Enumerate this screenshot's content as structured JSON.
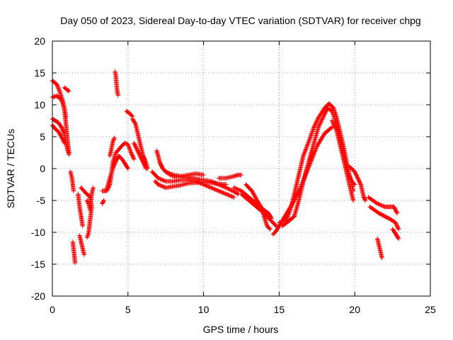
{
  "chart_data": {
    "type": "scatter",
    "title": "Day 050 of 2023, Sidereal Day-to-day VTEC variation (SDTVAR) for receiver chpg",
    "xlabel": "GPS time / hours",
    "ylabel": "SDTVAR / TECUs",
    "xlim": [
      0,
      25
    ],
    "ylim": [
      -20,
      20
    ],
    "xticks": [
      0,
      5,
      10,
      15,
      20,
      25
    ],
    "yticks": [
      -20,
      -15,
      -10,
      -5,
      0,
      5,
      10,
      15,
      20
    ],
    "grid": true,
    "marker": "+",
    "color": "#ff0000",
    "series": [
      {
        "name": "s1",
        "points": [
          [
            0.0,
            13.8
          ],
          [
            0.3,
            13.2
          ],
          [
            0.5,
            12.0
          ],
          [
            0.7,
            10.5
          ],
          [
            0.8,
            9.0
          ],
          [
            0.9,
            7.0
          ],
          [
            1.0,
            4.5
          ],
          [
            1.1,
            2.5
          ]
        ]
      },
      {
        "name": "s2",
        "points": [
          [
            0.0,
            11.2
          ],
          [
            0.3,
            11.4
          ],
          [
            0.6,
            10.8
          ],
          [
            0.8,
            9.5
          ],
          [
            0.9,
            8.0
          ]
        ]
      },
      {
        "name": "s3",
        "points": [
          [
            0.0,
            7.8
          ],
          [
            0.2,
            7.5
          ],
          [
            0.4,
            7.2
          ],
          [
            0.6,
            6.5
          ],
          [
            0.8,
            5.5
          ],
          [
            0.9,
            4.0
          ],
          [
            1.0,
            3.0
          ],
          [
            1.1,
            2.2
          ]
        ]
      },
      {
        "name": "s4",
        "points": [
          [
            0.0,
            6.8
          ],
          [
            0.2,
            6.2
          ],
          [
            0.4,
            5.8
          ],
          [
            0.6,
            5.0
          ],
          [
            0.8,
            4.0
          ]
        ]
      },
      {
        "name": "s5",
        "points": [
          [
            0.8,
            12.7
          ],
          [
            0.9,
            12.5
          ],
          [
            1.0,
            12.3
          ],
          [
            1.1,
            12.2
          ]
        ]
      },
      {
        "name": "s6",
        "points": [
          [
            1.2,
            -0.5
          ],
          [
            1.3,
            -1.5
          ],
          [
            1.35,
            -2.5
          ],
          [
            1.4,
            -3.5
          ]
        ]
      },
      {
        "name": "s7",
        "points": [
          [
            1.35,
            -11.5
          ],
          [
            1.4,
            -12.5
          ],
          [
            1.45,
            -13.5
          ],
          [
            1.5,
            -14.8
          ]
        ]
      },
      {
        "name": "s8",
        "points": [
          [
            1.7,
            -4.0
          ],
          [
            1.8,
            -6.0
          ],
          [
            1.9,
            -7.5
          ],
          [
            2.0,
            -9.0
          ]
        ]
      },
      {
        "name": "s9",
        "points": [
          [
            1.8,
            -10.5
          ],
          [
            1.9,
            -11.5
          ],
          [
            2.0,
            -12.5
          ],
          [
            2.1,
            -13.5
          ]
        ]
      },
      {
        "name": "s10",
        "points": [
          [
            1.9,
            -3.0
          ],
          [
            2.2,
            -3.8
          ],
          [
            2.5,
            -4.5
          ],
          [
            2.6,
            -6.0
          ],
          [
            2.5,
            -8.0
          ],
          [
            2.4,
            -10.0
          ],
          [
            2.3,
            -10.8
          ]
        ]
      },
      {
        "name": "s11",
        "points": [
          [
            2.3,
            -5.0
          ],
          [
            2.4,
            -5.5
          ],
          [
            2.5,
            -6.5
          ],
          [
            2.6,
            -4.0
          ],
          [
            2.7,
            -3.0
          ]
        ]
      },
      {
        "name": "s12",
        "points": [
          [
            3.3,
            -5.5
          ],
          [
            3.4,
            -5.0
          ]
        ]
      },
      {
        "name": "s13",
        "points": [
          [
            3.3,
            -3.5
          ],
          [
            3.6,
            -3.5
          ],
          [
            3.8,
            -2.5
          ],
          [
            3.9,
            -1.0
          ],
          [
            4.0,
            1.0
          ],
          [
            4.2,
            2.5
          ],
          [
            4.4,
            3.0
          ],
          [
            4.6,
            3.6
          ],
          [
            4.8,
            4.0
          ],
          [
            5.0,
            3.8
          ],
          [
            5.2,
            2.5
          ],
          [
            5.4,
            1.5
          ]
        ]
      },
      {
        "name": "s14",
        "points": [
          [
            3.6,
            -3.2
          ],
          [
            3.8,
            -1.5
          ],
          [
            4.0,
            0.0
          ],
          [
            4.2,
            1.2
          ],
          [
            4.4,
            2.0
          ],
          [
            4.6,
            1.5
          ],
          [
            4.8,
            0.8
          ],
          [
            5.0,
            0.0
          ]
        ]
      },
      {
        "name": "s15",
        "points": [
          [
            3.8,
            2.0
          ],
          [
            3.9,
            3.0
          ],
          [
            4.0,
            4.2
          ],
          [
            4.1,
            4.8
          ]
        ]
      },
      {
        "name": "s16",
        "points": [
          [
            4.15,
            15.2
          ],
          [
            4.2,
            14.5
          ],
          [
            4.25,
            13.0
          ],
          [
            4.3,
            12.0
          ],
          [
            4.35,
            11.5
          ]
        ]
      },
      {
        "name": "s17",
        "points": [
          [
            4.9,
            9.0
          ],
          [
            5.1,
            8.7
          ],
          [
            5.3,
            8.2
          ]
        ]
      },
      {
        "name": "s18",
        "points": [
          [
            5.3,
            7.8
          ],
          [
            5.5,
            7.0
          ],
          [
            5.6,
            6.0
          ],
          [
            5.7,
            5.0
          ],
          [
            5.8,
            4.0
          ],
          [
            5.9,
            3.0
          ],
          [
            6.0,
            2.0
          ],
          [
            6.1,
            1.5
          ],
          [
            6.2,
            0.8
          ],
          [
            6.3,
            0.0
          ]
        ]
      },
      {
        "name": "s19",
        "points": [
          [
            5.4,
            4.0
          ],
          [
            5.6,
            3.0
          ],
          [
            5.8,
            2.0
          ],
          [
            6.0,
            1.0
          ],
          [
            6.2,
            0.0
          ]
        ]
      },
      {
        "name": "s20",
        "points": [
          [
            6.9,
            2.8
          ],
          [
            7.0,
            2.0
          ],
          [
            7.1,
            1.0
          ],
          [
            7.2,
            0.5
          ],
          [
            7.3,
            0.0
          ],
          [
            7.5,
            -0.5
          ],
          [
            7.8,
            -1.0
          ],
          [
            8.0,
            -1.2
          ],
          [
            8.5,
            -1.3
          ],
          [
            9.0,
            -1.4
          ],
          [
            9.5,
            -1.6
          ],
          [
            10.0,
            -1.8
          ],
          [
            10.5,
            -2.0
          ],
          [
            11.0,
            -2.5
          ],
          [
            11.5,
            -3.0
          ],
          [
            12.0,
            -3.6
          ],
          [
            12.3,
            -4.0
          ]
        ]
      },
      {
        "name": "s21",
        "points": [
          [
            6.6,
            -0.5
          ],
          [
            6.8,
            -1.0
          ],
          [
            7.0,
            -1.5
          ],
          [
            7.5,
            -2.0
          ],
          [
            8.0,
            -2.0
          ],
          [
            8.5,
            -1.8
          ],
          [
            9.0,
            -1.8
          ],
          [
            9.5,
            -2.0
          ],
          [
            10.0,
            -2.5
          ],
          [
            10.5,
            -3.0
          ],
          [
            11.0,
            -3.5
          ],
          [
            11.5,
            -4.0
          ],
          [
            12.0,
            -4.5
          ]
        ]
      },
      {
        "name": "s22",
        "points": [
          [
            6.8,
            -2.0
          ],
          [
            7.0,
            -2.5
          ],
          [
            7.5,
            -3.0
          ],
          [
            8.0,
            -2.8
          ],
          [
            8.5,
            -2.6
          ],
          [
            9.0,
            -2.3
          ],
          [
            9.5,
            -2.2
          ],
          [
            10.0,
            -2.1
          ],
          [
            10.5,
            -2.2
          ],
          [
            11.0,
            -2.4
          ],
          [
            11.5,
            -2.5
          ]
        ]
      },
      {
        "name": "s23",
        "points": [
          [
            7.5,
            -0.5
          ],
          [
            8.0,
            -1.0
          ],
          [
            8.5,
            -1.2
          ],
          [
            9.0,
            -1.0
          ],
          [
            9.5,
            -0.8
          ],
          [
            10.0,
            -1.0
          ]
        ]
      },
      {
        "name": "s24",
        "points": [
          [
            11.0,
            -1.5
          ],
          [
            11.5,
            -1.5
          ],
          [
            12.0,
            -1.2
          ],
          [
            12.3,
            -1.0
          ],
          [
            12.5,
            -1.0
          ]
        ]
      },
      {
        "name": "s25",
        "points": [
          [
            12.0,
            -3.0
          ],
          [
            12.5,
            -3.5
          ],
          [
            13.0,
            -4.5
          ],
          [
            13.5,
            -5.5
          ],
          [
            14.0,
            -6.5
          ],
          [
            14.3,
            -7.0
          ],
          [
            14.5,
            -7.8
          ]
        ]
      },
      {
        "name": "s26",
        "points": [
          [
            12.8,
            -2.5
          ],
          [
            13.2,
            -3.5
          ],
          [
            13.5,
            -4.8
          ],
          [
            13.8,
            -6.0
          ],
          [
            14.0,
            -7.5
          ],
          [
            14.2,
            -9.0
          ],
          [
            14.4,
            -9.5
          ]
        ]
      },
      {
        "name": "s27",
        "points": [
          [
            12.5,
            -4.0
          ],
          [
            13.0,
            -5.0
          ],
          [
            13.5,
            -6.0
          ],
          [
            14.0,
            -7.0
          ],
          [
            14.4,
            -8.0
          ],
          [
            14.6,
            -8.5
          ],
          [
            14.8,
            -9.0
          ]
        ]
      },
      {
        "name": "s28",
        "points": [
          [
            14.6,
            -10.3
          ],
          [
            14.8,
            -9.8
          ],
          [
            15.0,
            -9.0
          ],
          [
            15.5,
            -7.0
          ],
          [
            16.0,
            -5.0
          ],
          [
            16.5,
            -2.5
          ],
          [
            17.0,
            0.5
          ],
          [
            17.5,
            3.5
          ],
          [
            18.0,
            5.5
          ],
          [
            18.5,
            6.5
          ]
        ]
      },
      {
        "name": "s29",
        "points": [
          [
            15.0,
            -8.5
          ],
          [
            15.5,
            -8.0
          ],
          [
            15.8,
            -6.0
          ],
          [
            16.0,
            -4.0
          ],
          [
            16.3,
            -1.0
          ],
          [
            16.6,
            2.0
          ],
          [
            17.0,
            4.5
          ],
          [
            17.3,
            6.5
          ],
          [
            17.6,
            8.0
          ],
          [
            18.0,
            9.5
          ],
          [
            18.3,
            10.2
          ],
          [
            18.6,
            9.5
          ],
          [
            18.8,
            8.0
          ],
          [
            19.0,
            6.0
          ],
          [
            19.3,
            3.0
          ],
          [
            19.5,
            0.5
          ],
          [
            19.7,
            -1.5
          ],
          [
            19.9,
            -3.5
          ]
        ]
      },
      {
        "name": "s30",
        "points": [
          [
            15.2,
            -9.0
          ],
          [
            15.5,
            -8.5
          ],
          [
            16.0,
            -7.5
          ],
          [
            16.3,
            -5.0
          ],
          [
            16.6,
            -2.0
          ],
          [
            17.0,
            1.5
          ],
          [
            17.3,
            4.0
          ],
          [
            17.6,
            6.5
          ],
          [
            18.0,
            8.5
          ],
          [
            18.2,
            9.5
          ],
          [
            18.5,
            9.0
          ],
          [
            18.8,
            7.0
          ],
          [
            19.0,
            5.0
          ],
          [
            19.2,
            3.0
          ],
          [
            19.4,
            1.0
          ],
          [
            19.6,
            -1.0
          ],
          [
            19.8,
            -2.0
          ],
          [
            20.0,
            -2.5
          ]
        ]
      },
      {
        "name": "s31",
        "points": [
          [
            18.5,
            7.5
          ],
          [
            18.8,
            6.0
          ],
          [
            19.0,
            4.0
          ],
          [
            19.2,
            2.0
          ],
          [
            19.4,
            0.0
          ],
          [
            19.6,
            -2.0
          ],
          [
            19.8,
            -4.0
          ],
          [
            19.9,
            -5.0
          ]
        ]
      },
      {
        "name": "s32",
        "points": [
          [
            19.5,
            0.5
          ],
          [
            19.8,
            0.0
          ],
          [
            20.0,
            -0.5
          ],
          [
            20.2,
            -1.5
          ],
          [
            20.4,
            -2.5
          ],
          [
            20.5,
            -3.5
          ],
          [
            20.6,
            -4.5
          ],
          [
            20.7,
            -5.0
          ]
        ]
      },
      {
        "name": "s33",
        "points": [
          [
            20.9,
            -4.5
          ],
          [
            21.2,
            -5.0
          ],
          [
            21.5,
            -5.5
          ],
          [
            22.0,
            -6.0
          ],
          [
            22.3,
            -6.0
          ],
          [
            22.6,
            -6.0
          ],
          [
            22.8,
            -7.0
          ]
        ]
      },
      {
        "name": "s34",
        "points": [
          [
            21.0,
            -6.0
          ],
          [
            21.3,
            -6.5
          ],
          [
            21.6,
            -7.0
          ],
          [
            22.0,
            -7.5
          ],
          [
            22.4,
            -8.0
          ],
          [
            22.7,
            -8.5
          ],
          [
            22.9,
            -9.5
          ]
        ]
      },
      {
        "name": "s35",
        "points": [
          [
            21.5,
            -11.0
          ],
          [
            21.6,
            -12.0
          ],
          [
            21.7,
            -13.0
          ],
          [
            21.8,
            -14.0
          ]
        ]
      },
      {
        "name": "s36",
        "points": [
          [
            22.5,
            -9.5
          ],
          [
            22.7,
            -10.2
          ],
          [
            22.9,
            -11.0
          ]
        ]
      }
    ]
  }
}
